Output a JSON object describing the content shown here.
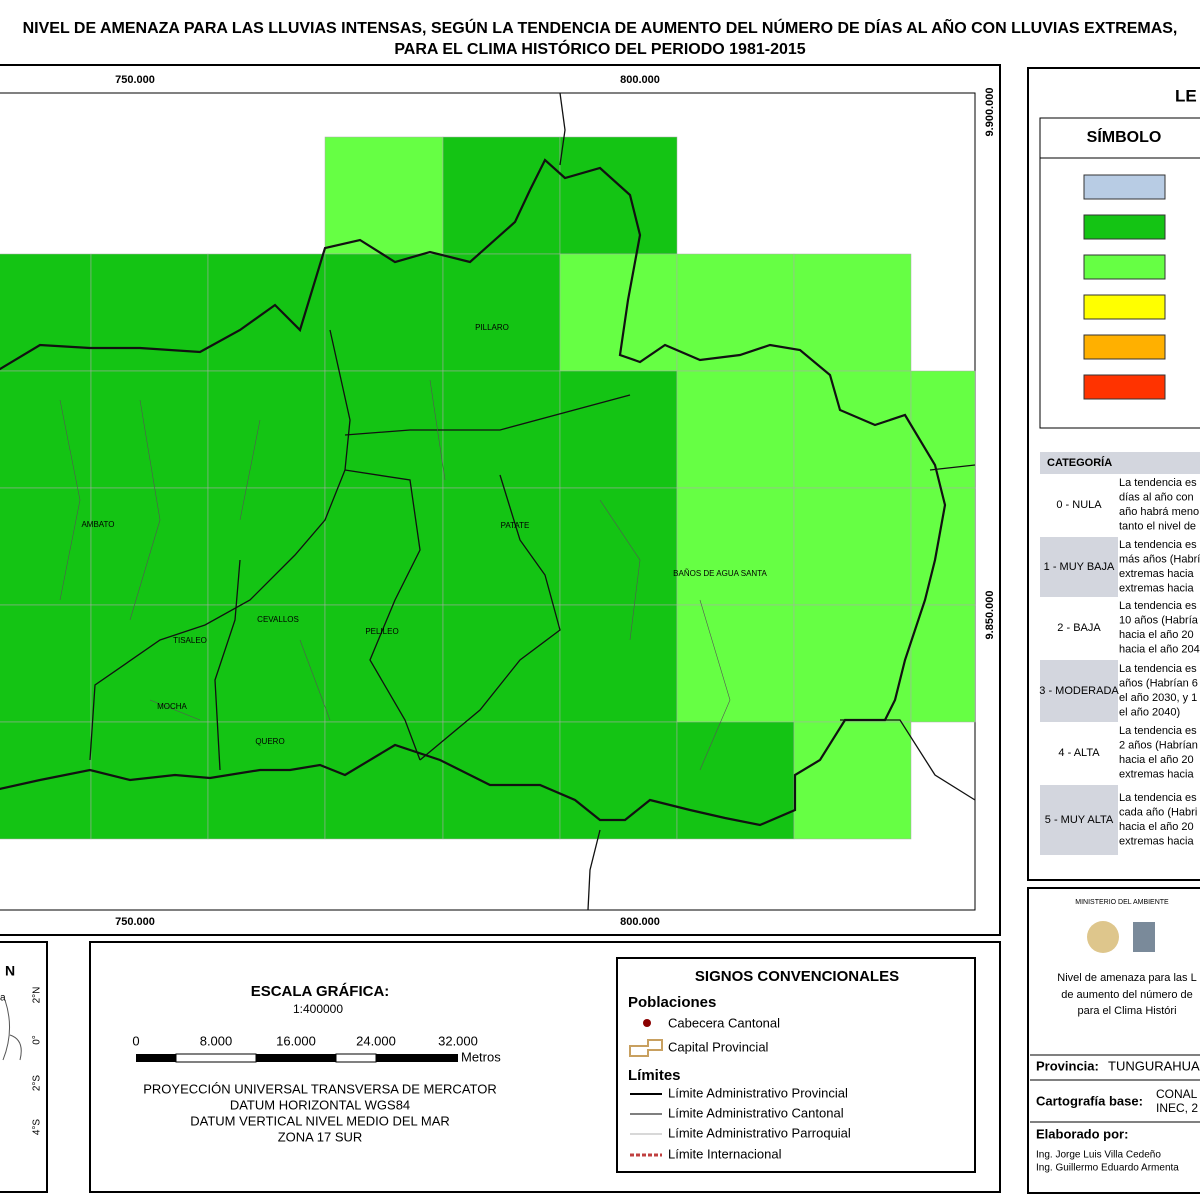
{
  "title": [
    "NIVEL DE AMENAZA PARA LAS LLUVIAS INTENSAS, SEGÚN LA TENDENCIA DE AUMENTO DEL NÚMERO DE DÍAS AL AÑO CON LLUVIAS EXTREMAS,",
    "PARA EL CLIMA HISTÓRICO DEL PERIODO 1981-2015"
  ],
  "map": {
    "x_labels": [
      "750.000",
      "800.000"
    ],
    "y_labels": [
      "9.900.000",
      "9.850.000"
    ],
    "places": [
      "PILLARO",
      "AMBATO",
      "PATATE",
      "BAÑOS DE AGUA SANTA",
      "CEVALLOS",
      "TISALEO",
      "PELILEO",
      "MOCHA",
      "QUERO"
    ]
  },
  "legend": {
    "title": "LE",
    "symbol_header": "SÍMBOLO",
    "category_header": "CATEGORÍA",
    "rows": [
      {
        "category": "0 - NULA",
        "text": [
          "La tendencia es",
          "días al año con",
          "año habrá meno",
          "tanto el nivel de"
        ]
      },
      {
        "category": "1 - MUY BAJA",
        "text": [
          "La tendencia es",
          "más años (Habrí",
          "extremas hacia",
          "extremas hacia"
        ]
      },
      {
        "category": "2 - BAJA",
        "text": [
          "La tendencia es",
          "10 años (Habría",
          "hacia el año 20",
          "hacia el año 204"
        ]
      },
      {
        "category": "3 - MODERADA",
        "text": [
          "La tendencia es",
          "años (Habrían 6",
          "el año 2030, y 1",
          "el año 2040)"
        ]
      },
      {
        "category": "4 - ALTA",
        "text": [
          "La tendencia es",
          "2 años (Habrían",
          "hacia el año 20",
          "extremas hacia"
        ]
      },
      {
        "category": "5 - MUY ALTA",
        "text": [
          "La tendencia es",
          "cada año (Habri",
          "hacia el año 20",
          "extremas hacia"
        ]
      }
    ]
  },
  "locator": {
    "title": "N",
    "labels": [
      "a",
      "2°N",
      "0°",
      "2°S",
      "4°S"
    ]
  },
  "scale": {
    "title": "ESCALA GRÁFICA:",
    "ratio": "1:400000",
    "ticks": [
      "0",
      "8.000",
      "16.000",
      "24.000",
      "32.000"
    ],
    "unit": "Metros",
    "projection": [
      "PROYECCIÓN UNIVERSAL TRANSVERSA DE MERCATOR",
      "DATUM HORIZONTAL WGS84",
      "DATUM VERTICAL NIVEL MEDIO DEL MAR",
      "ZONA 17 SUR"
    ]
  },
  "signs": {
    "title": "SIGNOS CONVENCIONALES",
    "populations": "Poblaciones",
    "cabecera": "Cabecera Cantonal",
    "capital": "Capital Provincial",
    "limits": "Límites",
    "limit_items": [
      "Límite Administrativo Provincial",
      "Límite Administrativo Cantonal",
      "Límite Administrativo Parroquial",
      "Límite Internacional"
    ]
  },
  "info": {
    "ministry": "MINISTERIO DEL AMBIENTE",
    "description": [
      "Nivel de amenaza para las L",
      "de aumento del número de",
      "para el Clima Históri"
    ],
    "province_label": "Provincia:",
    "province": "TUNGURAHUA",
    "base_label": "Cartografía base:",
    "base": [
      "CONAL",
      "INEC, 2"
    ],
    "author_label": "Elaborado por:",
    "authors": [
      "Ing. Jorge Luis Villa Cedeño",
      "Ing. Guillermo Eduardo Armenta"
    ]
  }
}
